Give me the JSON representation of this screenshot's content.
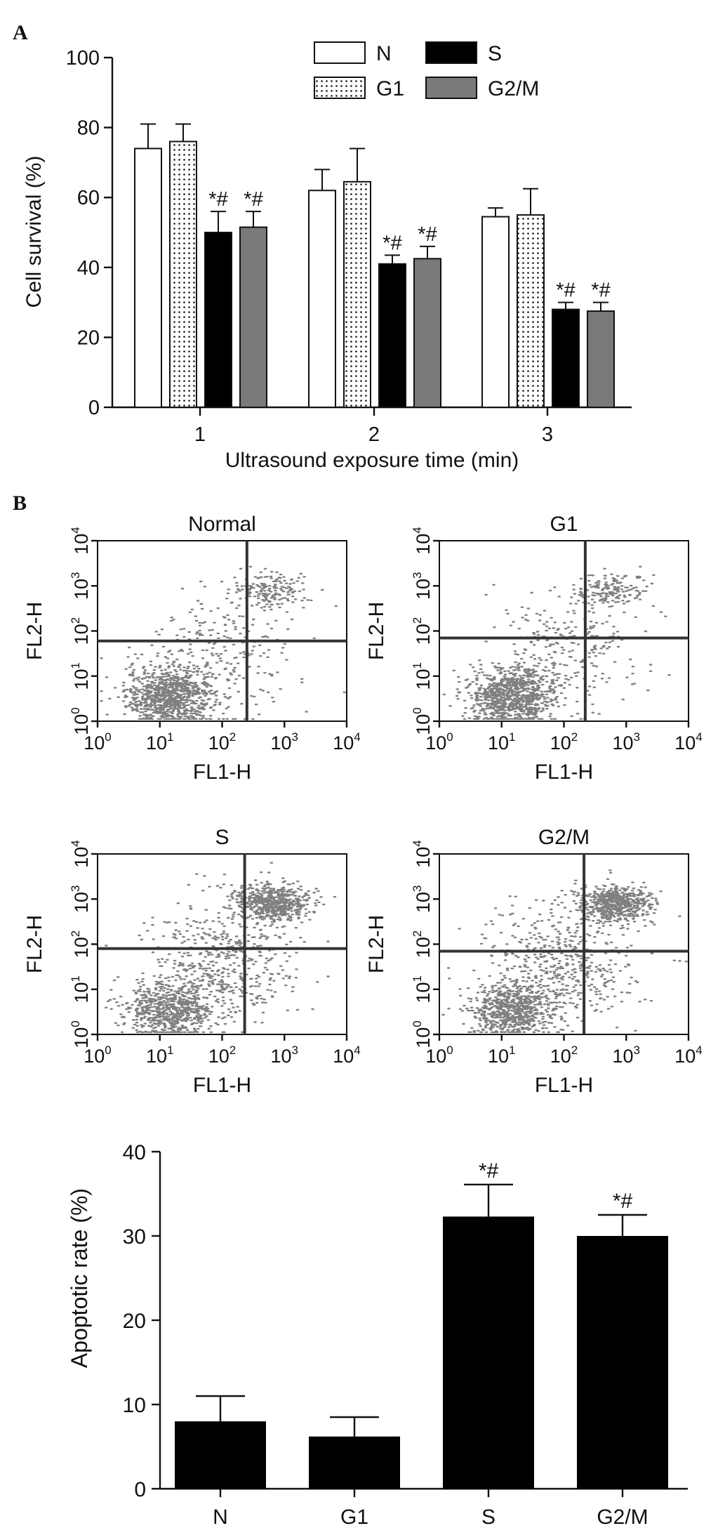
{
  "figure": {
    "panel_labels": [
      "A",
      "B"
    ]
  },
  "colors": {
    "N": "#ffffff",
    "G1": "#ffffff",
    "S": "#000000",
    "G2/M": "#7a7a7a",
    "dots": "#555555"
  },
  "chart_data": [
    {
      "id": "survival",
      "type": "bar",
      "title": "",
      "xlabel": "Ultrasound exposure time (min)",
      "ylabel": "Cell survival (%)",
      "categories": [
        "1",
        "2",
        "3"
      ],
      "ylim": [
        0,
        100
      ],
      "yticks": [
        "0",
        "20",
        "40",
        "60",
        "80",
        "100"
      ],
      "legend": {
        "placement": "top",
        "entries": [
          "N",
          "S",
          "G1",
          "G2/M"
        ]
      },
      "series": [
        {
          "name": "N",
          "pattern": "open",
          "values": [
            74.0,
            62.0,
            54.5
          ],
          "errors": [
            7.0,
            6.0,
            2.5
          ]
        },
        {
          "name": "G1",
          "pattern": "dotted",
          "values": [
            76.0,
            64.5,
            55.0
          ],
          "errors": [
            5.0,
            9.5,
            7.5
          ]
        },
        {
          "name": "S",
          "pattern": "black",
          "values": [
            50.0,
            41.0,
            28.0
          ],
          "errors": [
            6.0,
            2.5,
            2.0
          ],
          "annotation": "*#"
        },
        {
          "name": "G2/M",
          "pattern": "gray",
          "values": [
            51.5,
            42.5,
            27.5
          ],
          "errors": [
            4.5,
            3.5,
            2.5
          ],
          "annotation": "*#"
        }
      ]
    },
    {
      "id": "flow",
      "type": "scatter",
      "xlabel": "FL1-H",
      "ylabel": "FL2-H",
      "xlim": [
        1,
        10000
      ],
      "ylim": [
        1,
        10000
      ],
      "scale": "log",
      "tick_exponents": [
        "0",
        "1",
        "2",
        "3",
        "4"
      ],
      "tick_base": "10",
      "panels": [
        {
          "title": "Normal",
          "gate_x": 250,
          "gate_y": 60
        },
        {
          "title": "G1",
          "gate_x": 220,
          "gate_y": 70
        },
        {
          "title": "S",
          "gate_x": 230,
          "gate_y": 80
        },
        {
          "title": "G2/M",
          "gate_x": 210,
          "gate_y": 70
        }
      ]
    },
    {
      "id": "apoptosis",
      "type": "bar",
      "xlabel": "",
      "ylabel": "Apoptotic rate (%)",
      "categories": [
        "N",
        "G1",
        "S",
        "G2/M"
      ],
      "ylim": [
        0,
        40
      ],
      "yticks": [
        "0",
        "10",
        "20",
        "30",
        "40"
      ],
      "values": [
        8.0,
        6.2,
        32.3,
        30.0
      ],
      "errors": [
        3.0,
        2.3,
        3.8,
        2.5
      ],
      "annotations": [
        "",
        "",
        "*#",
        "*#"
      ]
    }
  ]
}
